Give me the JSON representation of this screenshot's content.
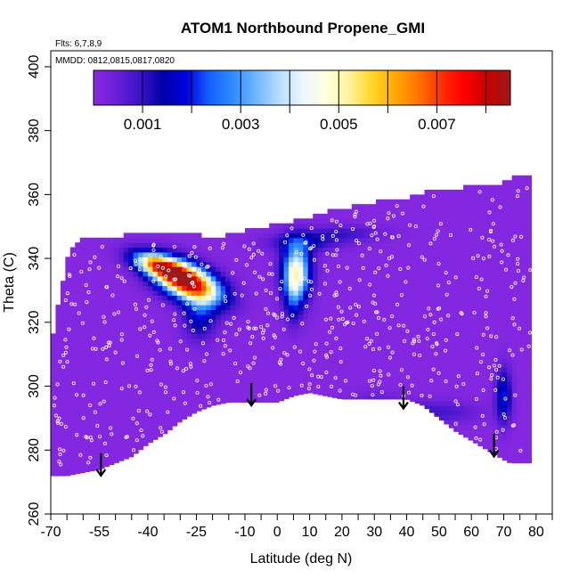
{
  "chart_data": {
    "type": "heatmap",
    "title": "ATOM1 Northbound Propene_GMI",
    "flights_note": "Flts: 6,7,8,9",
    "dates_note": "MMDD: 0812,0815,0817,0820",
    "xlabel": "Latitude (deg N)",
    "ylabel": "Theta (C)",
    "xlim": [
      -70,
      85
    ],
    "ylim": [
      260,
      405
    ],
    "x_tick_labels": [
      "-70",
      "-55",
      "-40",
      "-25",
      "-10",
      "0",
      "10",
      "20",
      "30",
      "40",
      "50",
      "60",
      "70",
      "80"
    ],
    "y_tick_labels": [
      "260",
      "280",
      "300",
      "320",
      "340",
      "360",
      "380",
      "400"
    ],
    "colorbar": {
      "range": [
        0.0,
        0.0085
      ],
      "tick_labels": [
        "0.001",
        "0.003",
        "0.005",
        "0.007"
      ],
      "colors": [
        "#8a2be2",
        "#6a1fd8",
        "#3a14c8",
        "#0000a8",
        "#0000e0",
        "#1560ff",
        "#2e8bff",
        "#6cb6ff",
        "#b5dcff",
        "#ebf6ff",
        "#ffffe0",
        "#fff4a0",
        "#ffd82a",
        "#ffaa00",
        "#ff7600",
        "#ff3000",
        "#ff0000",
        "#c80000",
        "#9c1a1a"
      ]
    },
    "background_value": 0.0001,
    "envelope": [
      [
        -70,
        272,
        312
      ],
      [
        -65,
        272,
        340
      ],
      [
        -60,
        273,
        346
      ],
      [
        -55,
        274,
        346
      ],
      [
        -50,
        276,
        346
      ],
      [
        -45,
        278,
        347
      ],
      [
        -40,
        282,
        347
      ],
      [
        -35,
        285,
        347
      ],
      [
        -30,
        289,
        347
      ],
      [
        -25,
        292,
        347
      ],
      [
        -20,
        294,
        345
      ],
      [
        -15,
        295,
        347
      ],
      [
        -10,
        295,
        348
      ],
      [
        -5,
        295,
        349
      ],
      [
        0,
        295,
        350
      ],
      [
        5,
        297,
        351
      ],
      [
        10,
        298,
        352
      ],
      [
        15,
        297,
        354
      ],
      [
        20,
        296,
        355
      ],
      [
        25,
        296,
        356
      ],
      [
        30,
        296,
        357
      ],
      [
        35,
        296,
        358
      ],
      [
        40,
        296,
        358
      ],
      [
        45,
        294,
        360
      ],
      [
        50,
        290,
        361
      ],
      [
        55,
        286,
        361
      ],
      [
        60,
        283,
        362
      ],
      [
        65,
        280,
        362
      ],
      [
        70,
        277,
        363
      ],
      [
        72,
        276,
        364
      ],
      [
        75,
        276,
        366
      ],
      [
        78,
        276,
        366
      ],
      [
        79,
        276,
        305
      ]
    ],
    "features": [
      {
        "x": -28,
        "y": 333,
        "sx": 7.5,
        "sy": 3.6,
        "angle": -25,
        "value": 0.0085
      },
      {
        "x": -37,
        "y": 338,
        "sx": 5.5,
        "sy": 2.2,
        "angle": -20,
        "value": 0.0048
      },
      {
        "x": -24,
        "y": 322,
        "sx": 3.5,
        "sy": 5,
        "angle": 0,
        "value": 0.0016
      },
      {
        "x": 6,
        "y": 336,
        "sx": 3,
        "sy": 6,
        "angle": 0,
        "value": 0.0045
      },
      {
        "x": 5,
        "y": 328,
        "sx": 2,
        "sy": 6,
        "angle": 0,
        "value": 0.0014
      },
      {
        "x": 8,
        "y": 345,
        "sx": 8,
        "sy": 2,
        "angle": 0,
        "value": 0.0011
      },
      {
        "x": 20,
        "y": 348,
        "sx": 9,
        "sy": 1.8,
        "angle": 0,
        "value": 0.0008
      },
      {
        "x": 70,
        "y": 297,
        "sx": 1.7,
        "sy": 6,
        "angle": 0,
        "value": 0.0019
      },
      {
        "x": 48,
        "y": 292,
        "sx": 10,
        "sy": 2.5,
        "angle": 0,
        "value": 0.0008
      },
      {
        "x": 30,
        "y": 296,
        "sx": 6,
        "sy": 2,
        "angle": 0,
        "value": 0.0004
      }
    ],
    "arrows": [
      {
        "x": -54.5,
        "y_top": 279,
        "y_tip": 272
      },
      {
        "x": -8,
        "y_top": 301,
        "y_tip": 294
      },
      {
        "x": 39,
        "y_top": 300,
        "y_tip": 293
      },
      {
        "x": 67,
        "y_top": 285,
        "y_tip": 278
      }
    ],
    "sample_point_color": "#ffffff",
    "arrow_color": "#000000"
  }
}
